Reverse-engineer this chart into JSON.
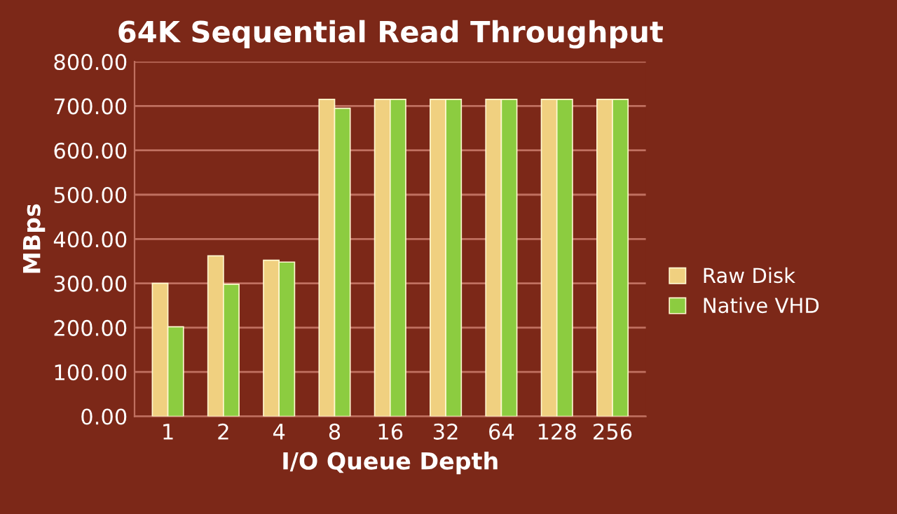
{
  "chart_data": {
    "type": "bar",
    "title": "64K Sequential Read Throughput",
    "xlabel": "I/O Queue Depth",
    "ylabel": "MBps",
    "categories": [
      "1",
      "2",
      "4",
      "8",
      "16",
      "32",
      "64",
      "128",
      "256"
    ],
    "series": [
      {
        "name": "Raw Disk",
        "color": "#f0d080",
        "values": [
          300,
          362,
          352,
          715,
          715,
          715,
          715,
          715,
          715
        ]
      },
      {
        "name": "Native VHD",
        "color": "#8ccc40",
        "values": [
          202,
          298,
          348,
          695,
          715,
          715,
          715,
          715,
          715
        ]
      }
    ],
    "ylim": [
      0,
      800
    ],
    "yticks": [
      {
        "value": 0,
        "label": "0.00"
      },
      {
        "value": 100,
        "label": "100.00"
      },
      {
        "value": 200,
        "label": "200.00"
      },
      {
        "value": 300,
        "label": "300.00"
      },
      {
        "value": 400,
        "label": "400.00"
      },
      {
        "value": 500,
        "label": "500.00"
      },
      {
        "value": 600,
        "label": "600.00"
      },
      {
        "value": 700,
        "label": "700.00"
      },
      {
        "value": 800,
        "label": "800.00"
      }
    ],
    "grid": "y",
    "legend": "right"
  }
}
